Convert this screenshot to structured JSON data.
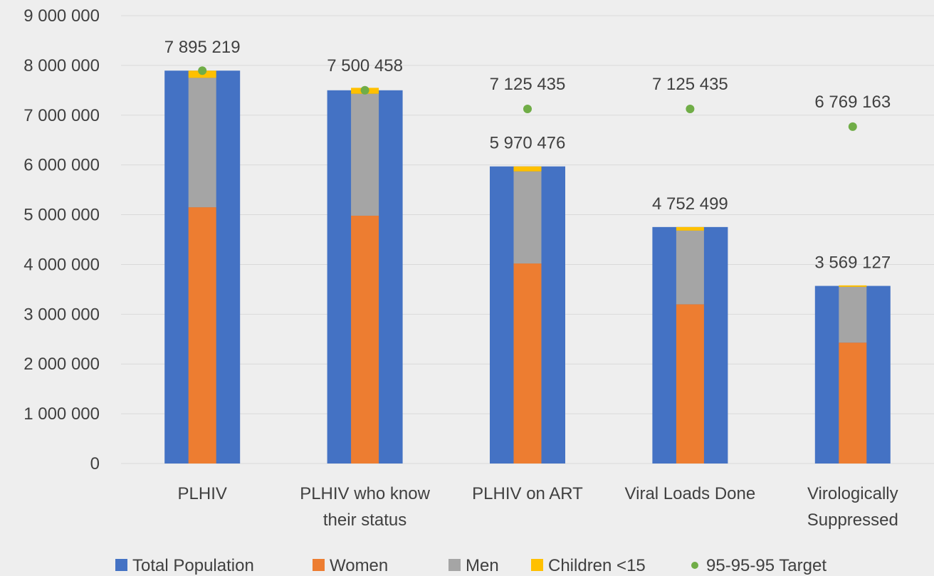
{
  "chart_data": {
    "type": "bar",
    "title": "",
    "xlabel": "",
    "ylabel": "",
    "ylim": [
      0,
      9000000
    ],
    "yticks": [
      0,
      1000000,
      2000000,
      3000000,
      4000000,
      5000000,
      6000000,
      7000000,
      8000000,
      9000000
    ],
    "ytick_labels": [
      "0",
      "1 000 000",
      "2 000 000",
      "3 000 000",
      "4 000 000",
      "5 000 000",
      "6 000 000",
      "7 000 000",
      "8 000 000",
      "9 000 000"
    ],
    "grid": true,
    "legend_position": "bottom",
    "categories": [
      [
        "PLHIV"
      ],
      [
        "PLHIV who know",
        "their status"
      ],
      [
        "PLHIV on ART"
      ],
      [
        "Viral Loads Done"
      ],
      [
        "Virologically",
        "Suppressed"
      ]
    ],
    "total_series": {
      "name": "Total Population",
      "color": "#4472c4",
      "values": [
        7895219,
        7500458,
        5970476,
        4752499,
        3569127
      ],
      "value_labels": [
        "7 895 219",
        "",
        "5 970 476",
        "4 752 499",
        "3 569 127"
      ]
    },
    "stacked_series": [
      {
        "name": "Women",
        "color": "#ed7d31",
        "values": [
          5150000,
          4980000,
          4020000,
          3200000,
          2430000
        ]
      },
      {
        "name": "Men",
        "color": "#a5a5a5",
        "values": [
          2600000,
          2450000,
          1850000,
          1480000,
          1120000
        ]
      },
      {
        "name": "Children <15",
        "color": "#ffc000",
        "values": [
          145219,
          120000,
          100476,
          72499,
          30000
        ]
      }
    ],
    "target_series": {
      "name": "95-95-95 Target",
      "color": "#70ad47",
      "values": [
        7895219,
        7500458,
        7125435,
        7125435,
        6769163
      ],
      "value_labels": [
        "",
        "7 500 458",
        "7 125 435",
        "7 125 435",
        "6 769 163"
      ]
    }
  }
}
